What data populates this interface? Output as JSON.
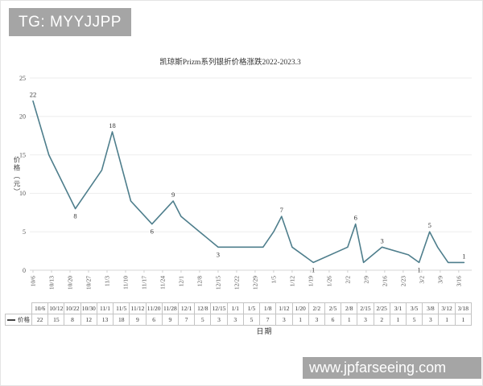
{
  "badges": {
    "tg": "TG: MYYJJPP",
    "watermark": "www.jpfarseeing.com",
    "badge_color": "#a5a5a5"
  },
  "chart_data": {
    "type": "line",
    "title": "凯琼斯Prizm系列银折价格涨跌2022-2023.3",
    "xlabel": "日期",
    "ylabel": "价格（元）",
    "legend_label": "价格",
    "line_color": "#4e7e8c",
    "grid": true,
    "ylim": [
      0,
      25
    ],
    "y_ticks": [
      0,
      5,
      10,
      15,
      20,
      25
    ],
    "x_axis_ticks": [
      "10/6",
      "10/13",
      "10/20",
      "10/27",
      "11/3",
      "11/10",
      "11/17",
      "11/24",
      "12/1",
      "12/8",
      "12/15",
      "12/22",
      "12/29",
      "1/5",
      "1/12",
      "1/19",
      "1/26",
      "2/2",
      "2/9",
      "2/16",
      "2/23",
      "3/2",
      "3/9",
      "3/16"
    ],
    "x": [
      "10/6",
      "10/12",
      "10/22",
      "10/30",
      "11/1",
      "11/5",
      "11/12",
      "11/20",
      "11/28",
      "12/1",
      "12/8",
      "12/15",
      "1/1",
      "1/5",
      "1/8",
      "1/12",
      "1/20",
      "2/2",
      "2/5",
      "2/8",
      "2/15",
      "2/25",
      "3/1",
      "3/5",
      "3/8",
      "3/12",
      "3/18"
    ],
    "values": [
      22,
      15,
      8,
      12,
      13,
      18,
      9,
      6,
      9,
      7,
      5,
      3,
      3,
      5,
      7,
      3,
      1,
      3,
      6,
      1,
      3,
      2,
      1,
      5,
      3,
      1,
      1
    ],
    "point_labels": [
      {
        "x": "10/6",
        "value": 22,
        "pos": "above"
      },
      {
        "x": "10/22",
        "value": 8,
        "pos": "below"
      },
      {
        "x": "11/5",
        "value": 18,
        "pos": "above"
      },
      {
        "x": "11/20",
        "value": 6,
        "pos": "below"
      },
      {
        "x": "11/28",
        "value": 9,
        "pos": "above"
      },
      {
        "x": "12/15",
        "value": 3,
        "pos": "below"
      },
      {
        "x": "1/8",
        "value": 7,
        "pos": "above"
      },
      {
        "x": "1/20",
        "value": 1,
        "pos": "below"
      },
      {
        "x": "2/5",
        "value": 6,
        "pos": "above"
      },
      {
        "x": "2/15",
        "value": 3,
        "pos": "above"
      },
      {
        "x": "3/1",
        "value": 1,
        "pos": "below"
      },
      {
        "x": "3/5",
        "value": 5,
        "pos": "above"
      },
      {
        "x": "3/18",
        "value": 1,
        "pos": "above"
      }
    ]
  }
}
